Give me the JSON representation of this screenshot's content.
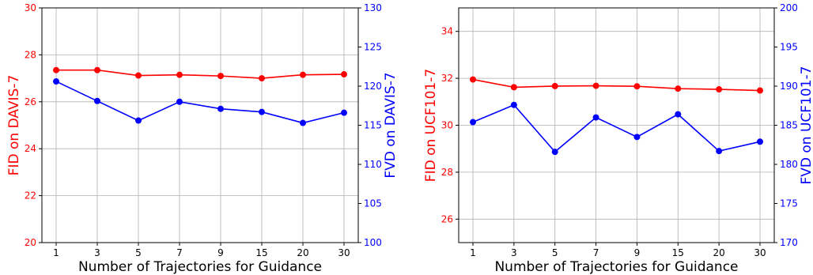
{
  "chart_data": [
    {
      "type": "line",
      "categories": [
        "1",
        "3",
        "5",
        "7",
        "9",
        "15",
        "20",
        "30"
      ],
      "xlabel": "Number of Trajectories for Guidance",
      "ylabel_left": "FID on DAVIS-7",
      "ylabel_right": "FVD on DAVIS-7",
      "ylim_left": [
        20,
        30
      ],
      "ylim_right": [
        100,
        130
      ],
      "yticks_left": [
        "20",
        "22",
        "24",
        "26",
        "28",
        "30"
      ],
      "yticks_right": [
        "100",
        "105",
        "110",
        "115",
        "120",
        "125",
        "130"
      ],
      "grid": true,
      "series": [
        {
          "axis": "left",
          "color": "#ff0000",
          "values": [
            27.35,
            27.35,
            27.12,
            27.15,
            27.1,
            27.0,
            27.15,
            27.17
          ]
        },
        {
          "axis": "right",
          "color": "#0000ff",
          "values": [
            120.6,
            118.1,
            115.6,
            118.0,
            117.1,
            116.7,
            115.3,
            116.6
          ]
        }
      ]
    },
    {
      "type": "line",
      "categories": [
        "1",
        "3",
        "5",
        "7",
        "9",
        "15",
        "20",
        "30"
      ],
      "xlabel": "Number of Trajectories for Guidance",
      "ylabel_left": "FID on UCF101-7",
      "ylabel_right": "FVD on UCF101-7",
      "ylim_left": [
        25,
        35
      ],
      "ylim_right": [
        170,
        200
      ],
      "yticks_left": [
        "26",
        "28",
        "30",
        "32",
        "34"
      ],
      "yticks_right": [
        "170",
        "175",
        "180",
        "185",
        "190",
        "195",
        "200"
      ],
      "grid": true,
      "series": [
        {
          "axis": "left",
          "color": "#ff0000",
          "values": [
            31.95,
            31.62,
            31.67,
            31.68,
            31.66,
            31.56,
            31.53,
            31.48
          ]
        },
        {
          "axis": "right",
          "color": "#0000ff",
          "values": [
            185.4,
            187.6,
            181.6,
            186.0,
            183.5,
            186.4,
            181.7,
            182.9
          ]
        }
      ]
    }
  ]
}
